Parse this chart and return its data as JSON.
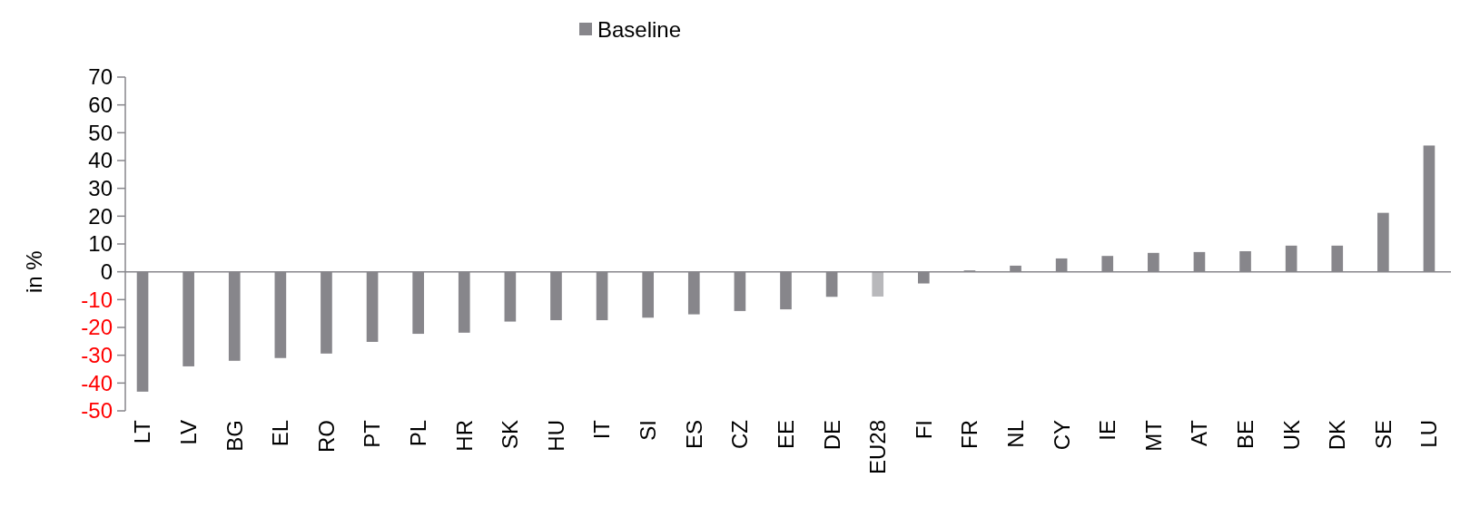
{
  "chart_data": {
    "type": "bar",
    "ylabel": "in %",
    "categories": [
      "LT",
      "LV",
      "BG",
      "EL",
      "RO",
      "PT",
      "PL",
      "HR",
      "SK",
      "HU",
      "IT",
      "SI",
      "ES",
      "CZ",
      "EE",
      "DE",
      "EU28",
      "FI",
      "FR",
      "NL",
      "CY",
      "IE",
      "MT",
      "AT",
      "BE",
      "UK",
      "DK",
      "SE",
      "LU"
    ],
    "series": [
      {
        "name": "Baseline",
        "color": "#87868b",
        "colors": [
          "#87868b",
          "#87868b",
          "#87868b",
          "#87868b",
          "#87868b",
          "#87868b",
          "#87868b",
          "#87868b",
          "#87868b",
          "#87868b",
          "#87868b",
          "#87868b",
          "#87868b",
          "#87868b",
          "#87868b",
          "#87868b",
          "#b8b8bb",
          "#87868b",
          "#87868b",
          "#87868b",
          "#87868b",
          "#87868b",
          "#87868b",
          "#87868b",
          "#87868b",
          "#87868b",
          "#87868b",
          "#87868b",
          "#87868b"
        ],
        "values": [
          -43.1,
          -34,
          -32,
          -31,
          -29.4,
          -25.2,
          -22.3,
          -21.9,
          -17.9,
          -17.4,
          -17.4,
          -16.5,
          -15.3,
          -14.1,
          -13.5,
          -9,
          -8.9,
          -4.2,
          0.5,
          2.2,
          4.8,
          5.7,
          6.8,
          7.1,
          7.4,
          9.4,
          9.4,
          21.2,
          45.4
        ]
      }
    ],
    "ylim": [
      -50,
      70
    ],
    "yticks": [
      -50,
      -40,
      -30,
      -20,
      -10,
      0,
      10,
      20,
      30,
      40,
      50,
      60,
      70
    ],
    "legend": "top"
  }
}
